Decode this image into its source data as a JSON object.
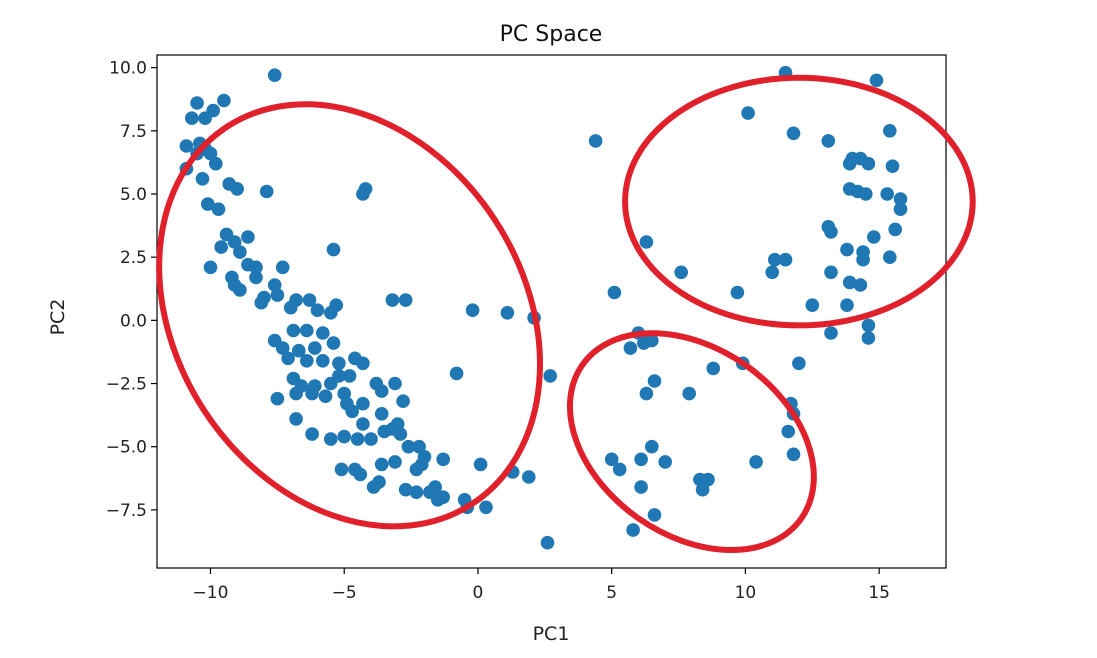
{
  "chart_data": {
    "type": "scatter",
    "title": "PC Space",
    "xlabel": "PC1",
    "ylabel": "PC2",
    "xlim": [
      -12,
      17.5
    ],
    "ylim": [
      -9.8,
      10.5
    ],
    "xticks": [
      -10,
      -5,
      0,
      5,
      10,
      15
    ],
    "yticks": [
      -7.5,
      -5.0,
      -2.5,
      0.0,
      2.5,
      5.0,
      7.5,
      10.0
    ],
    "xtick_labels": [
      "−10",
      "−5",
      "0",
      "5",
      "10",
      "15"
    ],
    "ytick_labels": [
      "−7.5",
      "−5.0",
      "−2.5",
      "0.0",
      "2.5",
      "5.0",
      "7.5",
      "10.0"
    ],
    "grid": false,
    "point_color": "#1f77b4",
    "series": [
      {
        "points": [
          [
            -10.5,
            8.6
          ],
          [
            -10.2,
            8.0
          ],
          [
            -9.9,
            8.3
          ],
          [
            -10.7,
            8.0
          ],
          [
            -9.5,
            8.7
          ],
          [
            -10.9,
            6.9
          ],
          [
            -10.5,
            6.6
          ],
          [
            -10.2,
            6.8
          ],
          [
            -10.9,
            6.0
          ],
          [
            -10.3,
            5.6
          ],
          [
            -10.4,
            7.0
          ],
          [
            -10.0,
            6.6
          ],
          [
            -9.8,
            6.2
          ],
          [
            -9.3,
            5.4
          ],
          [
            -9.0,
            5.2
          ],
          [
            -7.9,
            5.1
          ],
          [
            -10.1,
            4.6
          ],
          [
            -9.7,
            4.4
          ],
          [
            -7.6,
            9.7
          ],
          [
            -9.4,
            3.4
          ],
          [
            -9.1,
            3.1
          ],
          [
            -8.6,
            3.3
          ],
          [
            -9.6,
            2.9
          ],
          [
            -8.9,
            2.7
          ],
          [
            -8.6,
            2.2
          ],
          [
            -8.3,
            2.1
          ],
          [
            -10.0,
            2.1
          ],
          [
            -9.2,
            1.7
          ],
          [
            -9.1,
            1.4
          ],
          [
            -8.9,
            1.2
          ],
          [
            -8.3,
            1.7
          ],
          [
            -7.6,
            1.4
          ],
          [
            -7.3,
            2.1
          ],
          [
            -8.0,
            0.9
          ],
          [
            -8.1,
            0.7
          ],
          [
            -7.5,
            1.0
          ],
          [
            -6.8,
            0.8
          ],
          [
            -6.3,
            0.8
          ],
          [
            -6.0,
            0.4
          ],
          [
            -5.5,
            0.3
          ],
          [
            -5.3,
            0.6
          ],
          [
            -7.0,
            0.5
          ],
          [
            -6.9,
            -0.4
          ],
          [
            -6.4,
            -0.4
          ],
          [
            -5.8,
            -0.5
          ],
          [
            -7.6,
            -0.8
          ],
          [
            -7.3,
            -1.1
          ],
          [
            -6.7,
            -1.2
          ],
          [
            -6.1,
            -1.1
          ],
          [
            -5.4,
            -0.9
          ],
          [
            -7.1,
            -1.5
          ],
          [
            -6.4,
            -1.6
          ],
          [
            -5.8,
            -1.6
          ],
          [
            -5.2,
            -1.7
          ],
          [
            -4.6,
            -1.5
          ],
          [
            -4.3,
            -1.7
          ],
          [
            -4.8,
            -2.2
          ],
          [
            -5.2,
            -2.2
          ],
          [
            -5.5,
            -2.5
          ],
          [
            -6.9,
            -2.3
          ],
          [
            -6.6,
            -2.6
          ],
          [
            -6.1,
            -2.6
          ],
          [
            -7.5,
            -3.1
          ],
          [
            -6.8,
            -2.9
          ],
          [
            -6.2,
            -2.9
          ],
          [
            -5.7,
            -3.0
          ],
          [
            -5.0,
            -2.9
          ],
          [
            -4.9,
            -3.3
          ],
          [
            -4.3,
            -3.3
          ],
          [
            -3.8,
            -2.5
          ],
          [
            -3.1,
            -2.5
          ],
          [
            -3.6,
            -2.8
          ],
          [
            -2.8,
            -3.2
          ],
          [
            -4.7,
            -3.6
          ],
          [
            -4.3,
            -4.1
          ],
          [
            -3.6,
            -3.7
          ],
          [
            -3.0,
            -4.1
          ],
          [
            -6.8,
            -3.9
          ],
          [
            -6.2,
            -4.5
          ],
          [
            -5.5,
            -4.7
          ],
          [
            -5.0,
            -4.6
          ],
          [
            -4.5,
            -4.7
          ],
          [
            -4.0,
            -4.7
          ],
          [
            -3.5,
            -4.4
          ],
          [
            -3.2,
            -4.3
          ],
          [
            -2.9,
            -4.5
          ],
          [
            -2.6,
            -5.0
          ],
          [
            -2.2,
            -5.0
          ],
          [
            -2.0,
            -5.4
          ],
          [
            -1.3,
            -5.5
          ],
          [
            -2.1,
            -5.7
          ],
          [
            -2.3,
            -5.9
          ],
          [
            -3.1,
            -5.6
          ],
          [
            -3.6,
            -5.7
          ],
          [
            -3.7,
            -6.4
          ],
          [
            -3.9,
            -6.6
          ],
          [
            -4.6,
            -5.9
          ],
          [
            -5.1,
            -5.9
          ],
          [
            -4.4,
            -6.1
          ],
          [
            -2.7,
            -6.7
          ],
          [
            -2.3,
            -6.8
          ],
          [
            -1.8,
            -6.8
          ],
          [
            -1.6,
            -6.6
          ],
          [
            -1.5,
            -7.1
          ],
          [
            -1.3,
            -7.0
          ],
          [
            -0.5,
            -7.1
          ],
          [
            -0.4,
            -7.4
          ],
          [
            0.3,
            -7.4
          ],
          [
            0.1,
            -5.7
          ],
          [
            -4.3,
            5.0
          ],
          [
            -4.2,
            5.2
          ],
          [
            -5.4,
            2.8
          ],
          [
            -3.2,
            0.8
          ],
          [
            -2.7,
            0.8
          ],
          [
            -0.2,
            0.4
          ],
          [
            1.1,
            0.3
          ],
          [
            2.1,
            0.1
          ],
          [
            -0.8,
            -2.1
          ],
          [
            2.7,
            -2.2
          ],
          [
            1.3,
            -6.0
          ],
          [
            1.9,
            -6.2
          ],
          [
            2.6,
            -8.8
          ],
          [
            4.4,
            7.1
          ],
          [
            5.1,
            1.1
          ],
          [
            6.0,
            -0.5
          ],
          [
            5.7,
            -1.1
          ],
          [
            6.2,
            -0.9
          ],
          [
            6.5,
            -0.8
          ],
          [
            6.6,
            -2.4
          ],
          [
            6.3,
            -2.9
          ],
          [
            7.9,
            -2.9
          ],
          [
            8.8,
            -1.9
          ],
          [
            9.9,
            -1.7
          ],
          [
            5.0,
            -5.5
          ],
          [
            5.3,
            -5.9
          ],
          [
            6.1,
            -5.5
          ],
          [
            6.5,
            -5.0
          ],
          [
            7.0,
            -5.6
          ],
          [
            6.1,
            -6.6
          ],
          [
            6.6,
            -7.7
          ],
          [
            5.8,
            -8.3
          ],
          [
            8.3,
            -6.3
          ],
          [
            8.4,
            -6.7
          ],
          [
            8.6,
            -6.3
          ],
          [
            10.4,
            -5.6
          ],
          [
            11.6,
            -4.4
          ],
          [
            11.8,
            -5.3
          ],
          [
            11.7,
            -3.3
          ],
          [
            11.8,
            -3.7
          ],
          [
            12.0,
            -1.7
          ],
          [
            11.5,
            9.8
          ],
          [
            14.9,
            9.5
          ],
          [
            10.1,
            8.2
          ],
          [
            11.8,
            7.4
          ],
          [
            13.1,
            7.1
          ],
          [
            15.4,
            7.5
          ],
          [
            13.9,
            6.2
          ],
          [
            14.0,
            6.4
          ],
          [
            14.3,
            6.4
          ],
          [
            14.6,
            6.2
          ],
          [
            15.5,
            6.1
          ],
          [
            13.9,
            5.2
          ],
          [
            14.2,
            5.1
          ],
          [
            14.5,
            5.0
          ],
          [
            15.3,
            5.0
          ],
          [
            15.8,
            4.8
          ],
          [
            15.8,
            4.4
          ],
          [
            13.1,
            3.7
          ],
          [
            13.2,
            3.5
          ],
          [
            14.8,
            3.3
          ],
          [
            15.6,
            3.6
          ],
          [
            13.8,
            2.8
          ],
          [
            14.4,
            2.7
          ],
          [
            14.4,
            2.4
          ],
          [
            15.4,
            2.5
          ],
          [
            11.1,
            2.4
          ],
          [
            11.5,
            2.4
          ],
          [
            11.0,
            1.9
          ],
          [
            13.2,
            1.9
          ],
          [
            13.9,
            1.5
          ],
          [
            14.3,
            1.4
          ],
          [
            12.5,
            0.6
          ],
          [
            13.8,
            0.6
          ],
          [
            9.7,
            1.1
          ],
          [
            7.6,
            1.9
          ],
          [
            6.3,
            3.1
          ],
          [
            14.6,
            -0.2
          ],
          [
            14.6,
            -0.7
          ],
          [
            13.2,
            -0.5
          ]
        ]
      }
    ],
    "annotations": [
      {
        "shape": "ellipse",
        "color": "#e0202a",
        "around": "left cluster"
      },
      {
        "shape": "ellipse",
        "color": "#e0202a",
        "around": "bottom-middle cluster"
      },
      {
        "shape": "ellipse",
        "color": "#e0202a",
        "around": "top-right cluster"
      }
    ]
  }
}
